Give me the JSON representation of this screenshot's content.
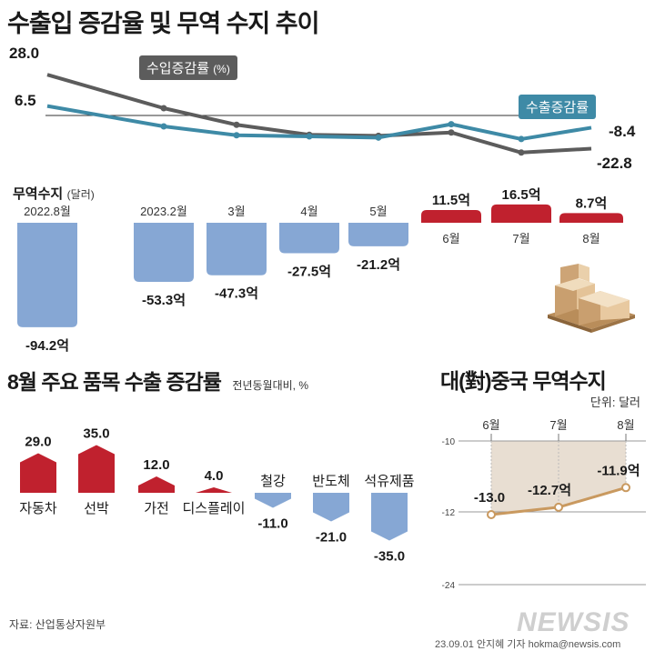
{
  "title": "수출입 증감율 및 무역 수지 추이",
  "chart_data": [
    {
      "type": "line",
      "categories": [
        "2022.8월",
        "2023.2월",
        "3월",
        "4월",
        "5월",
        "6월",
        "7월",
        "8월"
      ],
      "series": [
        {
          "name": "수입증감률",
          "unit": "(%)",
          "values": [
            28.0,
            5.0,
            -6.4,
            -13.3,
            -14.0,
            -11.7,
            -25.5,
            -22.8
          ],
          "color": "#5c5c5c"
        },
        {
          "name": "수출증감률",
          "values": [
            6.5,
            -7.5,
            -13.6,
            -14.4,
            -15.2,
            -6.0,
            -16.2,
            -8.4
          ],
          "color": "#3e8aa6"
        }
      ],
      "labels": {
        "import_first": "28.0",
        "export_first": "6.5",
        "export_last": "-8.4",
        "import_last": "-22.8"
      }
    },
    {
      "type": "bar",
      "title": "무역수지",
      "unit": "(달러)",
      "categories": [
        "2022.8월",
        "2023.2월",
        "3월",
        "4월",
        "5월",
        "6월",
        "7월",
        "8월"
      ],
      "values": [
        -94.2,
        -53.3,
        -47.3,
        -27.5,
        -21.2,
        11.5,
        16.5,
        8.7
      ],
      "value_labels": [
        "-94.2억",
        "-53.3억",
        "-47.3억",
        "-27.5억",
        "-21.2억",
        "11.5억",
        "16.5억",
        "8.7억"
      ],
      "positive_color": "#c0212e",
      "negative_color": "#86a7d4"
    },
    {
      "type": "bar",
      "title": "8월 주요 품목 수출 증감률",
      "subtitle": "전년동월대비, %",
      "categories": [
        "자동차",
        "선박",
        "가전",
        "디스플레이",
        "철강",
        "반도체",
        "석유제품"
      ],
      "values": [
        29.0,
        35.0,
        12.0,
        4.0,
        -11.0,
        -21.0,
        -35.0
      ],
      "value_labels": [
        "29.0",
        "35.0",
        "12.0",
        "4.0",
        "-11.0",
        "-21.0",
        "-35.0"
      ],
      "positive_color": "#c0212e",
      "negative_color": "#86a7d4"
    },
    {
      "type": "line",
      "title": "대(對)중국 무역수지",
      "unit": "단위: 달러",
      "categories": [
        "6월",
        "7월",
        "8월"
      ],
      "values": [
        -13.0,
        -12.7,
        -11.9
      ],
      "value_labels": [
        "-13.0",
        "-12.7억",
        "-11.9억"
      ],
      "y_ticks": [
        "-10",
        "-12",
        "-24"
      ],
      "color": "#c9995f"
    }
  ],
  "footer": {
    "source": "자료: 산업통상자원부",
    "credit": "23.09.01  안지혜  기자  hokma@newsis.com",
    "logo": "NEWSIS"
  }
}
